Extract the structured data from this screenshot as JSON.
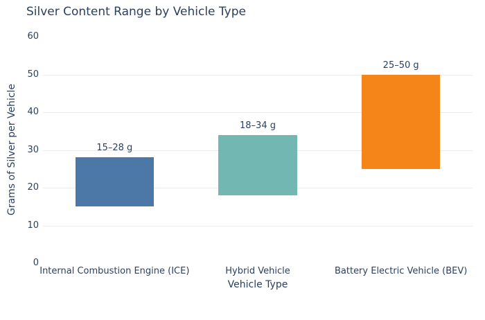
{
  "page": {
    "title": "Silver Content Range by Vehicle Type"
  },
  "colors": {
    "text": "#2a3f5f",
    "grid": "#ebebeb",
    "background": "#ffffff"
  },
  "chart_data": {
    "type": "bar",
    "subtype": "floating-range-bars",
    "title": "Silver Content Range by Vehicle Type",
    "xlabel": "Vehicle Type",
    "ylabel": "Grams of Silver per Vehicle",
    "categories": [
      "Internal Combustion Engine (ICE)",
      "Hybrid Vehicle",
      "Battery Electric Vehicle (BEV)"
    ],
    "bars": [
      {
        "category": "Internal Combustion Engine (ICE)",
        "low": 15,
        "high": 28,
        "label": "15–28 g",
        "color": "#4c78a8"
      },
      {
        "category": "Hybrid Vehicle",
        "low": 18,
        "high": 34,
        "label": "18–34 g",
        "color": "#72b7b2"
      },
      {
        "category": "Battery Electric Vehicle (BEV)",
        "low": 25,
        "high": 50,
        "label": "25–50 g",
        "color": "#f58518"
      }
    ],
    "ylim": [
      0,
      60
    ],
    "yticks": [
      0,
      10,
      20,
      30,
      40,
      50,
      60
    ],
    "grid": true,
    "legend": "none",
    "bar_width_frac": 0.55
  }
}
